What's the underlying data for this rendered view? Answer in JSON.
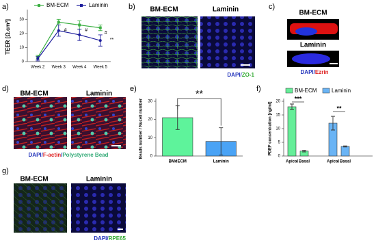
{
  "chart_data": [
    {
      "type": "line",
      "panel_label": "a)",
      "ylabel": "TEER [Ω.cm²]",
      "categories": [
        "Week 2",
        "Week 3",
        "Week 4",
        "Week 5"
      ],
      "series": [
        {
          "name": "BM-ECM",
          "color": "#3cb043",
          "marker": "square",
          "values": [
            3,
            28,
            26,
            24
          ],
          "errors": [
            1.5,
            2,
            3,
            2
          ]
        },
        {
          "name": "Laminin",
          "color": "#1c1c9c",
          "marker": "circle",
          "values": [
            2,
            22,
            19,
            15
          ],
          "errors": [
            1.5,
            4,
            4,
            4
          ]
        }
      ],
      "ylim": [
        0,
        35
      ],
      "yticks": [
        0,
        10,
        20,
        30
      ],
      "annotations": [
        "#",
        "#",
        "#",
        "**"
      ]
    },
    {
      "type": "bar",
      "panel_label": "e)",
      "ylabel": "Beads number / Nuceli number",
      "categories": [
        "BMdECM",
        "Laminin"
      ],
      "values": [
        21,
        8
      ],
      "errors": [
        6.5,
        7.5
      ],
      "colors": [
        "#5ef39b",
        "#4aa3f5"
      ],
      "ylim": [
        0,
        30
      ],
      "yticks": [
        0,
        10,
        20,
        30
      ],
      "annotations": [
        "**"
      ]
    },
    {
      "type": "grouped_bar",
      "panel_label": "f)",
      "ylabel": "PDEF concentration [ng/ml]",
      "categories": [
        "Apical",
        "Basal",
        "Apical",
        "Basal"
      ],
      "series": [
        {
          "name": "BM-ECM",
          "color": "#66ee99",
          "values": [
            18,
            1.8,
            null,
            null
          ],
          "errors": [
            1,
            0.3,
            null,
            null
          ]
        },
        {
          "name": "Laminin",
          "color": "#6ab4f5",
          "values": [
            null,
            null,
            12,
            3.5
          ],
          "errors": [
            null,
            null,
            2.5,
            0.2
          ]
        }
      ],
      "ylim": [
        0,
        20
      ],
      "yticks": [
        0,
        5,
        10,
        15,
        20
      ],
      "annotations": [
        "***",
        "**"
      ]
    }
  ],
  "image_panels": [
    {
      "panel_label": "b)",
      "titles": [
        "BM-ECM",
        "Laminin"
      ],
      "caption": [
        {
          "text": "DAPI",
          "color": "#2233bb"
        },
        {
          "text": "/",
          "color": "#2233bb"
        },
        {
          "text": "ZO-1",
          "color": "#33aa33"
        }
      ]
    },
    {
      "panel_label": "c)",
      "titles": [
        "BM-ECM",
        "Laminin"
      ],
      "caption": [
        {
          "text": "DAPI",
          "color": "#2233bb"
        },
        {
          "text": "/",
          "color": "#2233bb"
        },
        {
          "text": "Ezrin",
          "color": "#dd2222"
        }
      ]
    },
    {
      "panel_label": "d)",
      "titles": [
        "BM-ECM",
        "Laminin"
      ],
      "caption": [
        {
          "text": "DAPI",
          "color": "#2233bb"
        },
        {
          "text": "/",
          "color": "#2233bb"
        },
        {
          "text": "F-actin",
          "color": "#dd2222"
        },
        {
          "text": "/",
          "color": "#2233bb"
        },
        {
          "text": "Polystyrene Bead",
          "color": "#33aa77"
        }
      ]
    },
    {
      "panel_label": "g)",
      "titles": [
        "BM-ECM",
        "Laminin"
      ],
      "caption": [
        {
          "text": "DAPI",
          "color": "#2233bb"
        },
        {
          "text": "/",
          "color": "#2233bb"
        },
        {
          "text": "RPE65",
          "color": "#33aa33"
        }
      ]
    }
  ]
}
